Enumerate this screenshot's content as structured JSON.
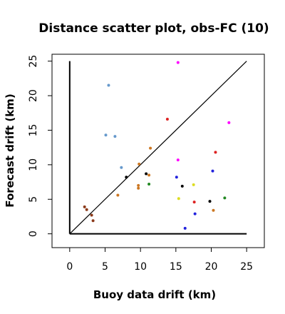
{
  "chart_data": {
    "type": "scatter",
    "title": "Distance scatter plot, obs-FC (10)",
    "xlabel": "Buoy data drift (km)",
    "ylabel": "Forecast drift (km)",
    "xlim": [
      -2.5,
      27.5
    ],
    "ylim": [
      -2,
      26
    ],
    "x_ticks": [
      0,
      5,
      10,
      15,
      20,
      25
    ],
    "y_ticks": [
      0,
      5,
      10,
      15,
      20,
      25
    ],
    "grid": false,
    "reference_lines": [
      {
        "kind": "identity",
        "from": [
          0,
          0
        ],
        "to": [
          25,
          25
        ],
        "color": "#000000"
      },
      {
        "kind": "vertical",
        "x": 0,
        "y_range": [
          0,
          25
        ],
        "color": "#000000"
      },
      {
        "kind": "horizontal",
        "y": 0,
        "x_range": [
          0,
          25
        ],
        "color": "#000000"
      }
    ],
    "series": [
      {
        "color": "#6699cc",
        "points": [
          [
            5.5,
            21.5
          ],
          [
            5.1,
            14.3
          ],
          [
            6.4,
            14.1
          ],
          [
            7.3,
            9.6
          ]
        ]
      },
      {
        "color": "#ff00ff",
        "points": [
          [
            15.3,
            24.8
          ],
          [
            22.5,
            16.1
          ],
          [
            15.3,
            10.7
          ]
        ]
      },
      {
        "color": "#dd2222",
        "points": [
          [
            13.8,
            16.6
          ],
          [
            20.6,
            11.8
          ],
          [
            17.6,
            4.6
          ]
        ]
      },
      {
        "color": "#cc7722",
        "points": [
          [
            11.4,
            12.4
          ],
          [
            9.8,
            10.1
          ],
          [
            11.2,
            8.5
          ],
          [
            9.7,
            7.0
          ],
          [
            9.7,
            6.6
          ],
          [
            6.8,
            5.6
          ],
          [
            20.3,
            3.4
          ]
        ]
      },
      {
        "color": "#000000",
        "points": [
          [
            8.0,
            8.2
          ],
          [
            10.8,
            8.7
          ],
          [
            15.9,
            6.9
          ],
          [
            19.8,
            4.7
          ]
        ]
      },
      {
        "color": "#2222dd",
        "points": [
          [
            15.1,
            8.2
          ],
          [
            20.2,
            9.1
          ],
          [
            17.7,
            2.9
          ],
          [
            16.3,
            0.8
          ]
        ]
      },
      {
        "color": "#dddd22",
        "points": [
          [
            17.5,
            7.1
          ],
          [
            15.4,
            5.1
          ]
        ]
      },
      {
        "color": "#228822",
        "points": [
          [
            11.2,
            7.2
          ],
          [
            21.9,
            5.2
          ]
        ]
      },
      {
        "color": "#8b3a1a",
        "points": [
          [
            2.1,
            3.9
          ],
          [
            2.4,
            3.5
          ],
          [
            3.1,
            2.7
          ],
          [
            3.3,
            1.9
          ]
        ]
      }
    ]
  }
}
